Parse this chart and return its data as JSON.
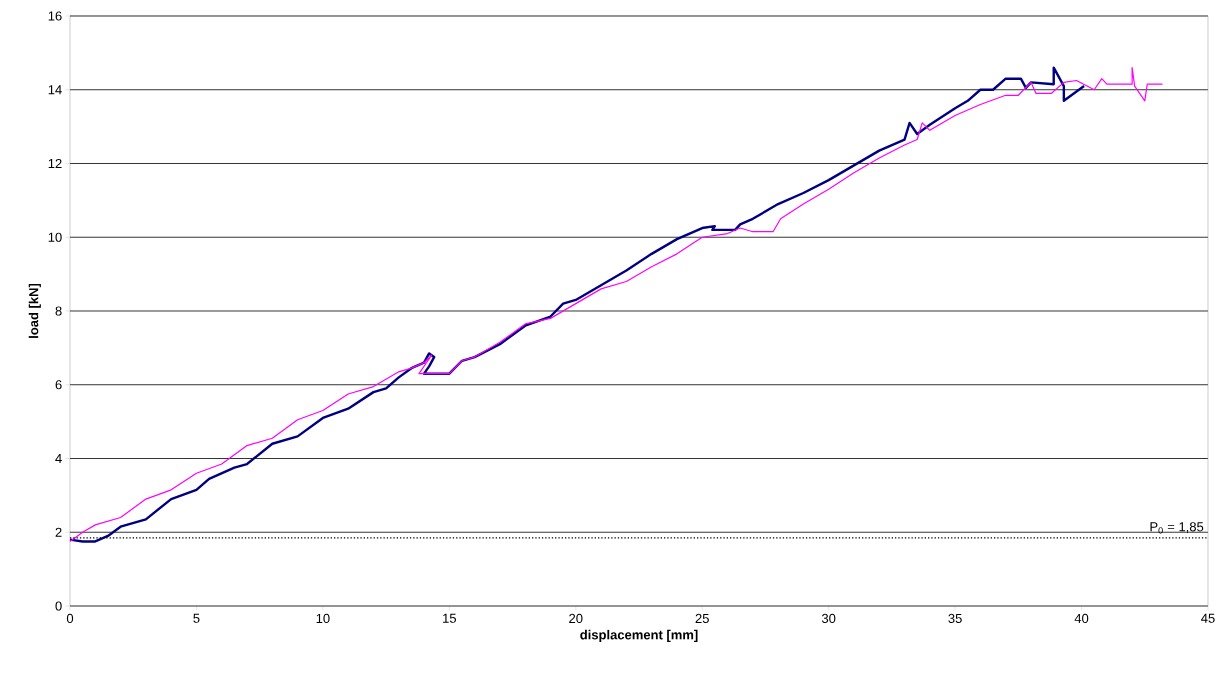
{
  "chart_data": {
    "type": "line",
    "xlabel": "displacement [mm]",
    "ylabel": "load [kN]",
    "xlim": [
      0,
      45
    ],
    "ylim": [
      0,
      16
    ],
    "xticks": [
      0,
      5,
      10,
      15,
      20,
      25,
      30,
      35,
      40,
      45
    ],
    "yticks": [
      0,
      2,
      4,
      6,
      8,
      10,
      12,
      14,
      16
    ],
    "grid": "y",
    "marker": "none",
    "line_style": "solid",
    "series": [
      {
        "color": "#000080",
        "x": [
          0,
          0.5,
          1,
          1.5,
          2,
          3,
          4,
          5,
          5.5,
          6.5,
          7,
          8,
          9,
          10,
          11,
          12,
          12.5,
          13,
          13.5,
          14,
          14.2,
          14.4,
          14.2,
          14,
          15,
          15.5,
          16,
          17,
          18,
          19,
          19.5,
          20,
          21,
          22,
          23,
          24,
          25,
          25.5,
          25.4,
          26.3,
          26.5,
          27,
          28,
          29,
          30,
          31,
          32,
          33,
          33.2,
          33.5,
          34,
          35,
          35.5,
          36,
          36.5,
          37,
          37.6,
          37.8,
          38,
          38.9,
          38.9,
          39.3,
          39.3,
          40.1
        ],
        "values": [
          1.8,
          1.75,
          1.75,
          1.9,
          2.15,
          2.35,
          2.9,
          3.15,
          3.45,
          3.75,
          3.85,
          4.4,
          4.6,
          5.1,
          5.35,
          5.8,
          5.9,
          6.2,
          6.45,
          6.6,
          6.85,
          6.75,
          6.5,
          6.3,
          6.3,
          6.65,
          6.75,
          7.1,
          7.6,
          7.85,
          8.2,
          8.3,
          8.7,
          9.1,
          9.55,
          9.95,
          10.25,
          10.3,
          10.2,
          10.2,
          10.35,
          10.5,
          10.9,
          11.2,
          11.55,
          11.95,
          12.35,
          12.65,
          13.1,
          12.8,
          13.05,
          13.5,
          13.7,
          14.0,
          14.0,
          14.3,
          14.3,
          14.05,
          14.2,
          14.15,
          14.6,
          14.1,
          13.7,
          14.1
        ]
      },
      {
        "color": "#ff00ff",
        "x": [
          0,
          0.5,
          1,
          2,
          3,
          4,
          5,
          6,
          7,
          8,
          9,
          10,
          11,
          12,
          13,
          13.5,
          14,
          14.3,
          13.8,
          15,
          15.5,
          16,
          17,
          18,
          19,
          20,
          21,
          22,
          23,
          24,
          25,
          25.5,
          26,
          26.5,
          27,
          27.8,
          28.1,
          29,
          30,
          31,
          32,
          33,
          33.5,
          33.7,
          34,
          35,
          36,
          37,
          37.5,
          38,
          38.2,
          38.8,
          39.3,
          39.8,
          40.5,
          40.8,
          41,
          42,
          42,
          42.1,
          42.5,
          42.6,
          43.2
        ],
        "values": [
          1.75,
          2.0,
          2.2,
          2.4,
          2.9,
          3.15,
          3.6,
          3.85,
          4.35,
          4.55,
          5.05,
          5.3,
          5.75,
          5.95,
          6.35,
          6.45,
          6.6,
          6.8,
          6.3,
          6.3,
          6.65,
          6.75,
          7.15,
          7.65,
          7.8,
          8.2,
          8.6,
          8.8,
          9.2,
          9.55,
          10.0,
          10.05,
          10.1,
          10.25,
          10.15,
          10.15,
          10.5,
          10.9,
          11.3,
          11.75,
          12.15,
          12.5,
          12.65,
          13.1,
          12.9,
          13.3,
          13.6,
          13.85,
          13.85,
          14.2,
          13.9,
          13.9,
          14.2,
          14.25,
          14.0,
          14.3,
          14.15,
          14.15,
          14.6,
          14.1,
          13.7,
          14.15,
          14.15
        ]
      }
    ],
    "ref_lines": [
      {
        "axis": "y",
        "value": 1.85,
        "label": "P$_{0}$ = 1,85",
        "line_style": "dotted",
        "color": "#000000"
      }
    ]
  }
}
